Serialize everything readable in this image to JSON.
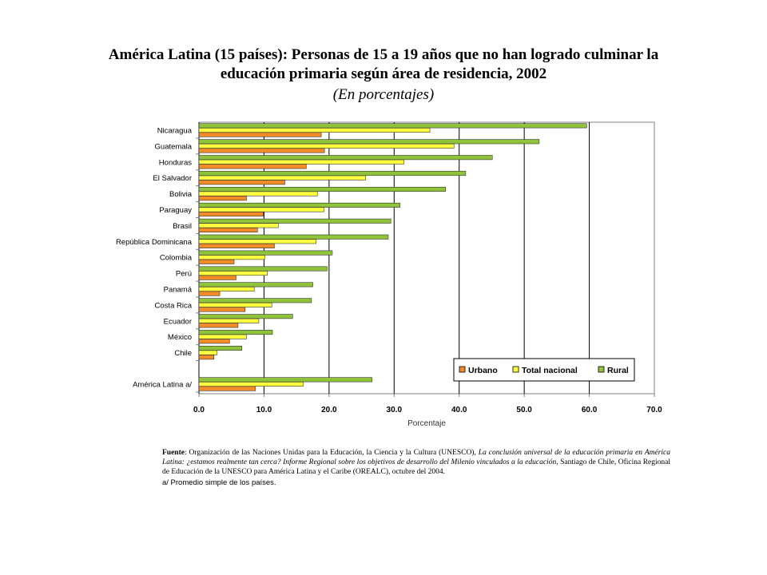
{
  "header": {
    "title_line1": "América Latina (15 países): Personas de 15 a 19 años que no han logrado culminar la",
    "title_line2": "educación primaria según área de residencia, 2002",
    "subtitle": "(En porcentajes)"
  },
  "footer": {
    "source_label": "Fuente",
    "source_prefix": ": Organización de las Naciones Unidas para la Educación, la Ciencia y la Cultura (UNESCO), ",
    "source_title": "La conclusión universal de la educación primaria en América Latina: ¿estamos realmente tan cerca? Informe Regional sobre los objetivos de desarrollo del Milenio vinculados a la educación",
    "source_suffix": ", Santiago de Chile, Oficina Regional de Educación de la UNESCO para América Latina y el Caribe (OREALC), octubre del 2004.",
    "note": "a/ Promedio simple de los países."
  },
  "colors": {
    "urbano": "#F28C28",
    "total_nacional": "#FFFF40",
    "rural": "#8FC43A",
    "bar_stroke": "#333333",
    "gridline": "#000000",
    "plot_border": "#808080"
  },
  "chart_data": {
    "type": "bar",
    "orientation": "horizontal",
    "categories": [
      "Nicaragua",
      "Guatemala",
      "Honduras",
      "El Salvador",
      "Bolivia",
      "Paraguay",
      "Brasil",
      "República Dominicana",
      "Colombia",
      "Perú",
      "Panamá",
      "Costa Rica",
      "Ecuador",
      "México",
      "Chile",
      "América Latina a/"
    ],
    "series": [
      {
        "name": "Rural",
        "color": "#8FC43A",
        "values": [
          59.6,
          52.3,
          45.1,
          41.0,
          37.9,
          30.9,
          29.5,
          29.1,
          20.5,
          19.7,
          17.5,
          17.3,
          14.4,
          11.3,
          6.6,
          26.6
        ]
      },
      {
        "name": "Total nacional",
        "color": "#FFFF40",
        "values": [
          35.5,
          39.2,
          31.5,
          25.6,
          18.2,
          19.2,
          12.2,
          18.0,
          10.1,
          10.5,
          8.5,
          11.2,
          9.2,
          7.3,
          2.8,
          16.0
        ]
      },
      {
        "name": "Urbano",
        "color": "#F28C28",
        "values": [
          18.8,
          19.3,
          16.5,
          13.2,
          7.3,
          9.9,
          9.0,
          11.6,
          5.4,
          5.7,
          3.2,
          7.1,
          6.0,
          4.7,
          2.3,
          8.7
        ]
      }
    ],
    "legend": [
      "Urbano",
      "Total nacional",
      "Rural"
    ],
    "legend_position": "bottom-right inside plot",
    "xticks": [
      "0.0",
      "10.0",
      "20.0",
      "30.0",
      "40.0",
      "50.0",
      "60.0",
      "70.0"
    ],
    "xlim": [
      0,
      70
    ],
    "xlabel": "Porcentaje",
    "ylabel": "",
    "grid": "vertical major lines"
  }
}
